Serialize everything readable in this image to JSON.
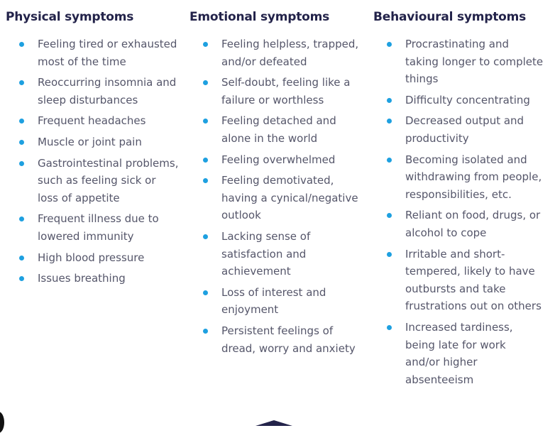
{
  "accent_color": "#1ea0e0",
  "heading_color": "#23234a",
  "columns": [
    {
      "title": "Physical symptoms",
      "items": [
        "Feeling tired or exhausted most of the time",
        "Reoccurring insomnia and sleep disturbances",
        "Frequent headaches",
        "Muscle or joint pain",
        "Gastrointestinal problems, such as feeling sick or loss of appetite",
        "Frequent illness due to lowered immunity",
        "High blood pressure",
        "Issues breathing"
      ]
    },
    {
      "title": "Emotional symptoms",
      "items": [
        "Feeling helpless, trapped, and/or defeated",
        "Self-doubt, feeling like a failure or worthless",
        "Feeling detached and alone in the world",
        "Feeling overwhelmed",
        "Feeling demotivated, having a cynical/negative outlook",
        "Lacking sense of satisfaction and achievement",
        "Loss of interest and enjoyment",
        "Persistent feelings of dread, worry and anxiety"
      ]
    },
    {
      "title": "Behavioural symptoms",
      "items": [
        "Procrastinating and taking longer to complete things",
        "Difficulty concentrating",
        "Decreased output and productivity",
        "Becoming isolated and withdrawing from people, responsibilities, etc.",
        "Reliant on food, drugs, or alcohol to cope",
        "Irritable and short-tempered, likely to have outbursts and take frustrations out on others",
        "Increased tardiness, being late for work and/or higher absenteeism"
      ]
    }
  ]
}
